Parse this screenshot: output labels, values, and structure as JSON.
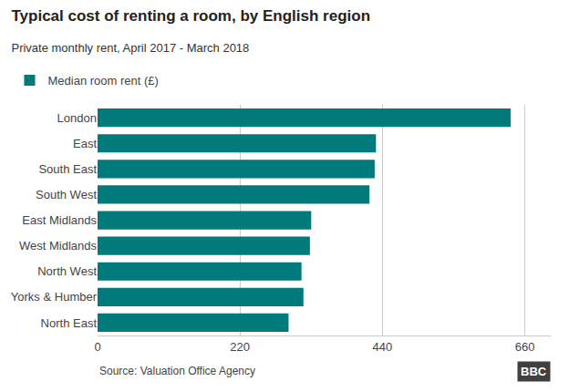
{
  "chart_data": {
    "type": "bar",
    "orientation": "horizontal",
    "title": "Typical cost of renting a room, by English region",
    "subtitle": "Private monthly rent, April 2017 - March 2018",
    "annotations": [
      "Source: Valuation Office Agency",
      "BBC"
    ],
    "categories": [
      "London",
      "East",
      "South East",
      "South West",
      "East Midlands",
      "West Midlands",
      "North West",
      "Yorks & Humber",
      "North East"
    ],
    "series": [
      {
        "name": "Median room rent (£)",
        "color": "#007a7a",
        "values": [
          638,
          430,
          428,
          420,
          330,
          328,
          315,
          318,
          295
        ]
      }
    ],
    "xlim": [
      0,
      700
    ],
    "xticks": [
      0,
      220,
      440,
      660
    ],
    "grid": true,
    "legend": "upper left"
  }
}
